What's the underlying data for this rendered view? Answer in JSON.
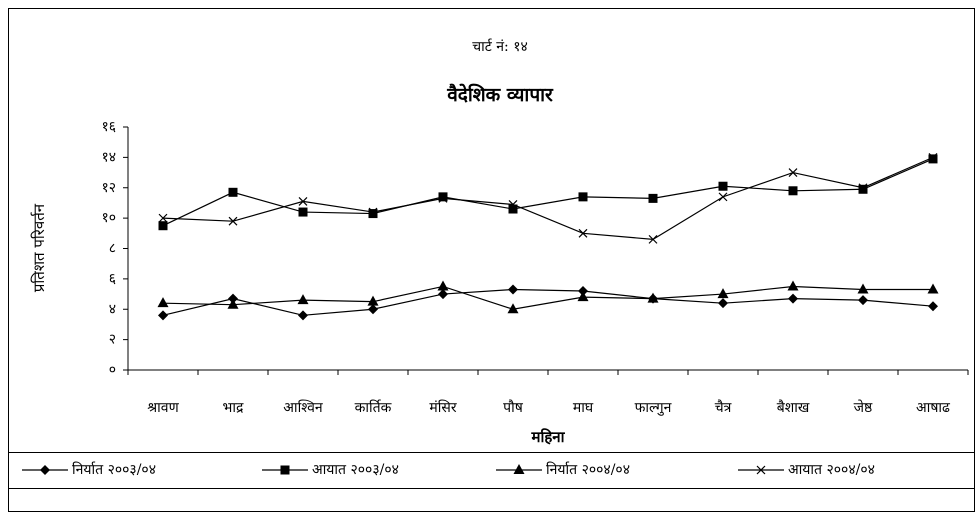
{
  "chart_data": {
    "type": "line",
    "chart_label": "चार्ट नं: १४",
    "title": "वैदेशिक व्यापार",
    "x_label": "महिना",
    "y_label": "प्रतिशत परिवर्तन",
    "categories": [
      "श्रावण",
      "भाद्र",
      "आश्विन",
      "कार्तिक",
      "मंसिर",
      "पौष",
      "माघ",
      "फाल्गुन",
      "चैत्र",
      "बैशाख",
      "जेष्ठ",
      "आषाढ"
    ],
    "series": [
      {
        "name": "निर्यात २००३/०४",
        "color": "#000000",
        "marker": "diamond",
        "values": [
          3.6,
          4.7,
          3.6,
          4.0,
          5.0,
          5.3,
          5.2,
          4.7,
          4.4,
          4.7,
          4.6,
          4.2
        ]
      },
      {
        "name": "आयात २००३/०४",
        "color": "#000000",
        "marker": "square",
        "values": [
          9.5,
          11.7,
          10.4,
          10.3,
          11.4,
          10.6,
          11.4,
          11.3,
          12.1,
          11.8,
          11.9,
          13.9
        ]
      },
      {
        "name": "निर्यात २००४/०४",
        "color": "#000000",
        "marker": "triangle",
        "values": [
          4.4,
          4.3,
          4.6,
          4.5,
          5.5,
          4.0,
          4.8,
          4.7,
          5.0,
          5.5,
          5.3,
          5.3
        ]
      },
      {
        "name": "आयात २००४/०४",
        "color": "#000000",
        "marker": "x",
        "values": [
          10.0,
          9.8,
          11.1,
          10.4,
          11.3,
          10.9,
          9.0,
          8.6,
          11.4,
          13.0,
          12.0,
          14.0
        ]
      }
    ],
    "ylim": [
      0,
      16
    ],
    "yticks": [
      {
        "value": 0,
        "label": "०"
      },
      {
        "value": 2,
        "label": "२"
      },
      {
        "value": 4,
        "label": "४"
      },
      {
        "value": 6,
        "label": "६"
      },
      {
        "value": 8,
        "label": "८"
      },
      {
        "value": 10,
        "label": "१०"
      },
      {
        "value": 12,
        "label": "१२"
      },
      {
        "value": 14,
        "label": "१४"
      },
      {
        "value": 16,
        "label": "१६"
      }
    ],
    "grid": false,
    "legend": "bottom"
  }
}
